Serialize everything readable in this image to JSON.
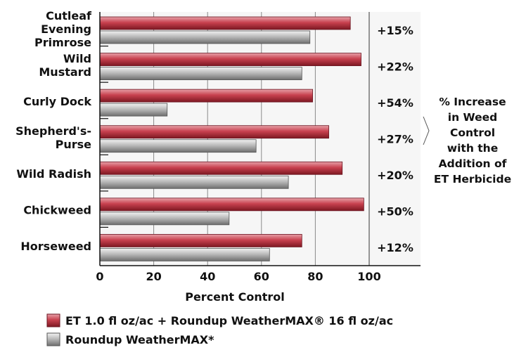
{
  "chart_data": {
    "type": "bar",
    "orientation": "horizontal",
    "categories": [
      [
        "Cutleaf",
        "Evening",
        "Primrose"
      ],
      [
        "Wild",
        "Mustard"
      ],
      [
        "Curly Dock"
      ],
      [
        "Shepherd's-",
        "Purse"
      ],
      [
        "Wild Radish"
      ],
      [
        "Chickweed"
      ],
      [
        "Horseweed"
      ]
    ],
    "series": [
      {
        "name": "ET 1.0 fl oz/ac + Roundup WeatherMAX® 16 fl oz/ac",
        "values": [
          93,
          97,
          79,
          85,
          90,
          98,
          75
        ],
        "color": "#c8414f"
      },
      {
        "name": "Roundup WeatherMAX*",
        "values": [
          78,
          75,
          25,
          58,
          70,
          48,
          63
        ],
        "color": "#b4b4b4"
      }
    ],
    "increase_labels": [
      "+15%",
      "+22%",
      "+54%",
      "+27%",
      "+20%",
      "+50%",
      "+12%"
    ],
    "xlabel": "Percent Control",
    "xlim": [
      0,
      100
    ],
    "xticks": [
      "0",
      "20",
      "40",
      "60",
      "80",
      "100"
    ],
    "annotation": [
      "% Increase",
      "in Weed",
      "Control",
      "with the",
      "Addition of",
      "ET Herbicide"
    ],
    "grid": true,
    "legend_position": "bottom-left"
  }
}
